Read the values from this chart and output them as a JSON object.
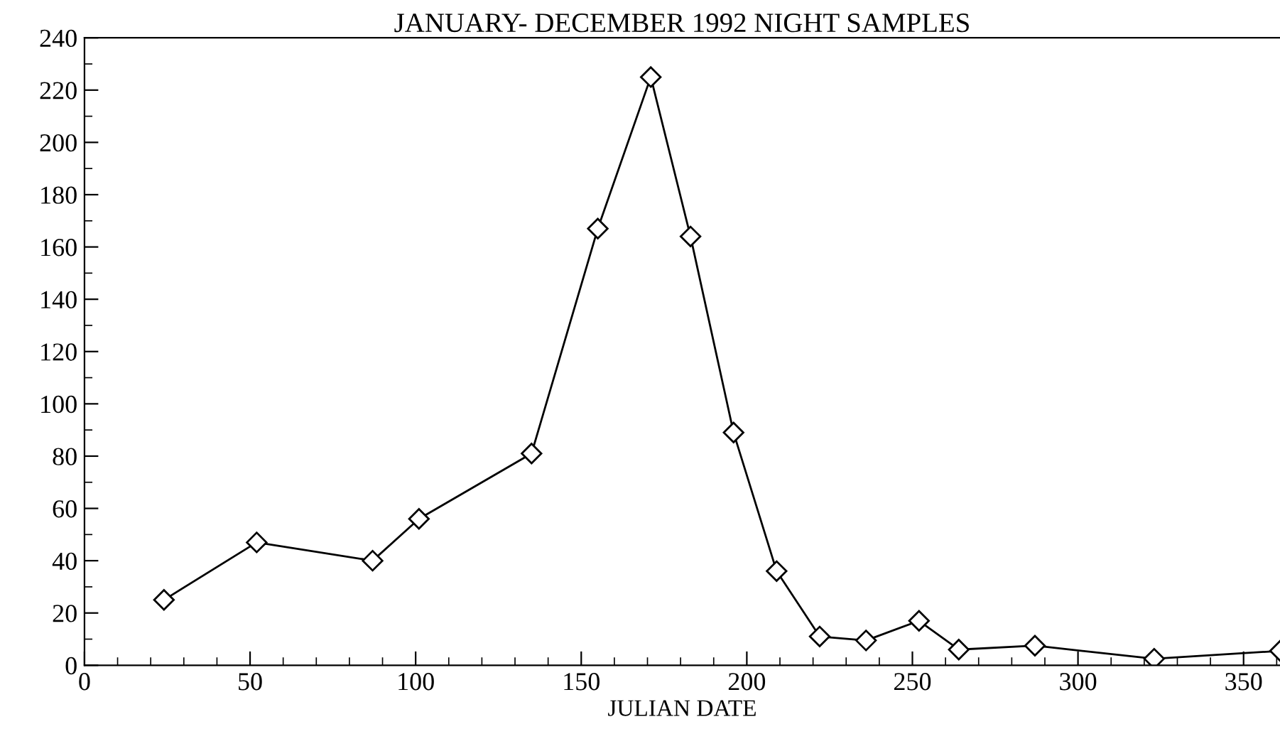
{
  "chart_data": {
    "type": "line",
    "title": "JANUARY- DECEMBER 1992 NIGHT SAMPLES",
    "xlabel": "JULIAN DATE",
    "x": [
      24,
      52,
      87,
      101,
      135,
      155,
      171,
      183,
      196,
      209,
      222,
      236,
      252,
      264,
      287,
      323,
      361
    ],
    "series": [
      {
        "color": "#000000",
        "values": [
          25,
          47,
          40,
          56,
          81,
          167,
          225,
          164,
          89,
          36,
          11,
          9.5,
          17,
          6,
          7.5,
          2.5,
          5.5
        ]
      }
    ],
    "xlim": [
      0,
      361
    ],
    "xticks": [
      0,
      50,
      100,
      150,
      200,
      250,
      300,
      350
    ],
    "ylim": [
      0,
      240
    ],
    "yticks": [
      0,
      20,
      40,
      60,
      80,
      100,
      120,
      140,
      160,
      180,
      200,
      220,
      240
    ],
    "grid": false,
    "legend": false,
    "marker": "diamond",
    "line_style": "solid"
  }
}
